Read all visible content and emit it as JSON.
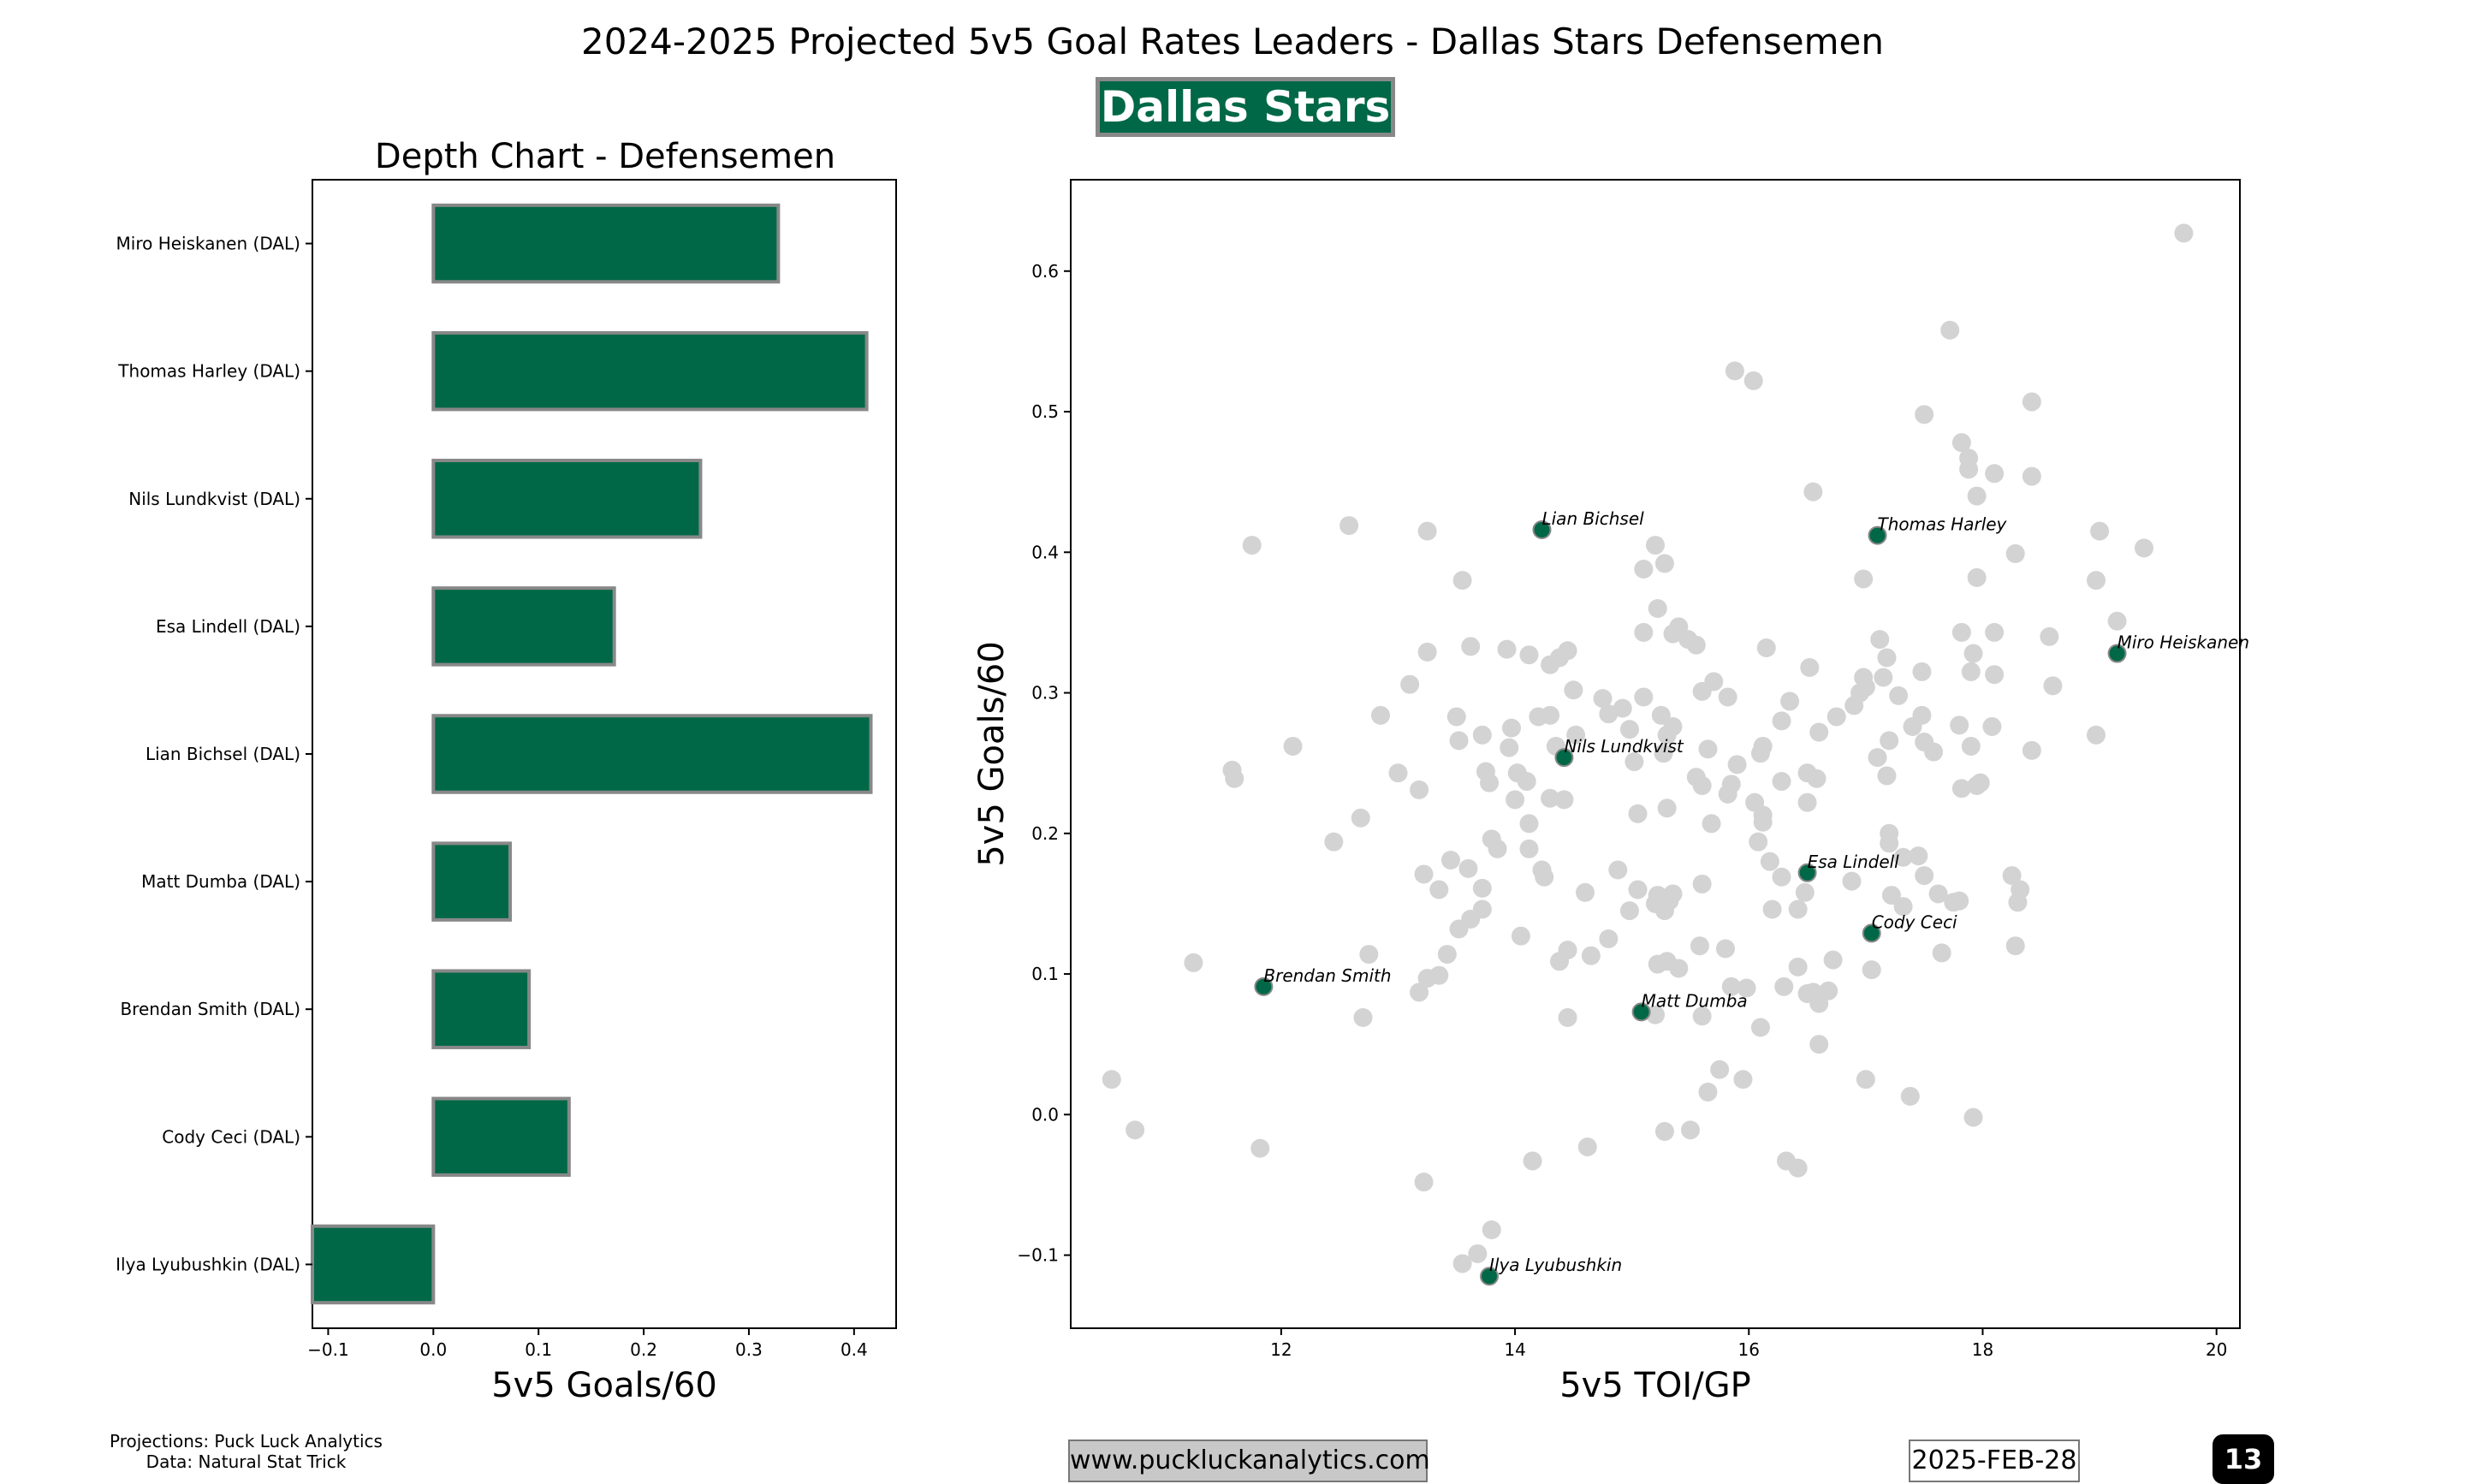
{
  "header": {
    "title": "2024-2025 Projected 5v5 Goal Rates Leaders - Dallas Stars Defensemen",
    "team_badge": "Dallas Stars"
  },
  "footer": {
    "credits_line1": "Projections: Puck Luck Analytics",
    "credits_line2": "Data: Natural Stat Trick",
    "url": "www.puckluckanalytics.com",
    "date": "2025-FEB-28",
    "page_number": "13"
  },
  "colors": {
    "team_green": "#006847",
    "bar_edge": "#888888",
    "league_points": "#d3d3d3"
  },
  "chart_data": [
    {
      "type": "bar",
      "orientation": "horizontal",
      "title": "Depth Chart - Defensemen",
      "xlabel": "5v5 Goals/60",
      "ylabel": "",
      "xlim": [
        -0.115,
        0.44
      ],
      "xticks": [
        -0.1,
        0.0,
        0.1,
        0.2,
        0.3,
        0.4
      ],
      "categories": [
        "Miro Heiskanen (DAL)",
        "Thomas Harley (DAL)",
        "Nils Lundkvist (DAL)",
        "Esa Lindell (DAL)",
        "Lian Bichsel (DAL)",
        "Matt Dumba (DAL)",
        "Brendan Smith (DAL)",
        "Cody Ceci (DAL)",
        "Ilya Lyubushkin (DAL)"
      ],
      "values": [
        0.328,
        0.412,
        0.254,
        0.172,
        0.416,
        0.073,
        0.091,
        0.129,
        -0.115
      ]
    },
    {
      "type": "scatter",
      "title": "",
      "xlabel": "5v5 TOI/GP",
      "ylabel": "5v5 Goals/60",
      "xlim": [
        10.2,
        20.2
      ],
      "ylim": [
        -0.152,
        0.665
      ],
      "xticks": [
        12,
        14,
        16,
        18,
        20
      ],
      "yticks": [
        -0.1,
        0.0,
        0.1,
        0.2,
        0.3,
        0.4,
        0.5,
        0.6
      ],
      "highlight": [
        {
          "label": "Miro Heiskanen",
          "x": 19.15,
          "y": 0.328
        },
        {
          "label": "Thomas Harley",
          "x": 17.1,
          "y": 0.412
        },
        {
          "label": "Lian Bichsel",
          "x": 14.23,
          "y": 0.416
        },
        {
          "label": "Nils Lundkvist",
          "x": 14.42,
          "y": 0.254
        },
        {
          "label": "Esa Lindell",
          "x": 16.5,
          "y": 0.172
        },
        {
          "label": "Cody Ceci",
          "x": 17.05,
          "y": 0.129
        },
        {
          "label": "Matt Dumba",
          "x": 15.08,
          "y": 0.073
        },
        {
          "label": "Brendan Smith",
          "x": 11.85,
          "y": 0.091
        },
        {
          "label": "Ilya Lyubushkin",
          "x": 13.78,
          "y": -0.115
        }
      ],
      "league": [
        [
          19.72,
          0.627
        ],
        [
          17.72,
          0.558
        ],
        [
          15.88,
          0.529
        ],
        [
          16.04,
          0.522
        ],
        [
          18.42,
          0.507
        ],
        [
          17.5,
          0.498
        ],
        [
          17.82,
          0.478
        ],
        [
          17.88,
          0.467
        ],
        [
          17.88,
          0.459
        ],
        [
          18.1,
          0.456
        ],
        [
          18.42,
          0.454
        ],
        [
          17.95,
          0.44
        ],
        [
          16.55,
          0.443
        ],
        [
          11.75,
          0.405
        ],
        [
          12.58,
          0.419
        ],
        [
          13.25,
          0.415
        ],
        [
          15.2,
          0.405
        ],
        [
          19.0,
          0.415
        ],
        [
          19.38,
          0.403
        ],
        [
          18.28,
          0.399
        ],
        [
          15.28,
          0.392
        ],
        [
          15.1,
          0.388
        ],
        [
          13.55,
          0.38
        ],
        [
          16.98,
          0.381
        ],
        [
          17.95,
          0.382
        ],
        [
          18.97,
          0.38
        ],
        [
          15.22,
          0.36
        ],
        [
          19.15,
          0.351
        ],
        [
          15.4,
          0.347
        ],
        [
          15.1,
          0.343
        ],
        [
          15.35,
          0.342
        ],
        [
          15.48,
          0.338
        ],
        [
          15.55,
          0.334
        ],
        [
          17.82,
          0.343
        ],
        [
          18.1,
          0.343
        ],
        [
          18.57,
          0.34
        ],
        [
          17.12,
          0.338
        ],
        [
          13.25,
          0.329
        ],
        [
          13.62,
          0.333
        ],
        [
          13.93,
          0.331
        ],
        [
          14.12,
          0.327
        ],
        [
          14.45,
          0.33
        ],
        [
          14.38,
          0.325
        ],
        [
          14.3,
          0.32
        ],
        [
          16.15,
          0.332
        ],
        [
          16.52,
          0.318
        ],
        [
          17.18,
          0.325
        ],
        [
          17.48,
          0.315
        ],
        [
          17.9,
          0.315
        ],
        [
          17.92,
          0.328
        ],
        [
          18.1,
          0.313
        ],
        [
          17.15,
          0.311
        ],
        [
          16.98,
          0.311
        ],
        [
          18.6,
          0.305
        ],
        [
          13.1,
          0.306
        ],
        [
          14.5,
          0.302
        ],
        [
          15.7,
          0.308
        ],
        [
          15.6,
          0.301
        ],
        [
          15.82,
          0.297
        ],
        [
          16.35,
          0.294
        ],
        [
          17.0,
          0.304
        ],
        [
          17.28,
          0.298
        ],
        [
          17.48,
          0.284
        ],
        [
          17.4,
          0.276
        ],
        [
          16.75,
          0.283
        ],
        [
          16.9,
          0.291
        ],
        [
          16.95,
          0.3
        ],
        [
          14.75,
          0.296
        ],
        [
          14.92,
          0.289
        ],
        [
          15.1,
          0.297
        ],
        [
          15.25,
          0.284
        ],
        [
          15.35,
          0.276
        ],
        [
          14.8,
          0.285
        ],
        [
          14.2,
          0.283
        ],
        [
          14.3,
          0.284
        ],
        [
          13.97,
          0.275
        ],
        [
          13.72,
          0.27
        ],
        [
          13.5,
          0.283
        ],
        [
          12.85,
          0.284
        ],
        [
          12.1,
          0.262
        ],
        [
          11.58,
          0.245
        ],
        [
          11.6,
          0.239
        ],
        [
          13.52,
          0.266
        ],
        [
          13.95,
          0.261
        ],
        [
          14.35,
          0.262
        ],
        [
          14.52,
          0.27
        ],
        [
          14.98,
          0.274
        ],
        [
          15.3,
          0.27
        ],
        [
          15.27,
          0.257
        ],
        [
          15.65,
          0.26
        ],
        [
          16.1,
          0.257
        ],
        [
          16.12,
          0.262
        ],
        [
          16.28,
          0.28
        ],
        [
          16.6,
          0.272
        ],
        [
          17.1,
          0.254
        ],
        [
          17.2,
          0.266
        ],
        [
          17.5,
          0.265
        ],
        [
          17.58,
          0.258
        ],
        [
          17.8,
          0.277
        ],
        [
          17.9,
          0.262
        ],
        [
          18.08,
          0.276
        ],
        [
          18.42,
          0.259
        ],
        [
          18.97,
          0.27
        ],
        [
          17.18,
          0.241
        ],
        [
          17.82,
          0.232
        ],
        [
          17.95,
          0.234
        ],
        [
          17.98,
          0.236
        ],
        [
          16.5,
          0.243
        ],
        [
          16.58,
          0.239
        ],
        [
          16.28,
          0.237
        ],
        [
          16.5,
          0.222
        ],
        [
          15.55,
          0.24
        ],
        [
          15.6,
          0.234
        ],
        [
          15.85,
          0.235
        ],
        [
          15.9,
          0.249
        ],
        [
          14.02,
          0.243
        ],
        [
          14.1,
          0.237
        ],
        [
          13.75,
          0.244
        ],
        [
          13.78,
          0.236
        ],
        [
          13.0,
          0.243
        ],
        [
          13.18,
          0.231
        ],
        [
          14.0,
          0.224
        ],
        [
          14.3,
          0.225
        ],
        [
          14.42,
          0.224
        ],
        [
          15.02,
          0.251
        ],
        [
          15.05,
          0.214
        ],
        [
          15.3,
          0.218
        ],
        [
          15.82,
          0.228
        ],
        [
          16.05,
          0.222
        ],
        [
          16.12,
          0.213
        ],
        [
          16.12,
          0.208
        ],
        [
          15.68,
          0.207
        ],
        [
          14.12,
          0.207
        ],
        [
          12.68,
          0.211
        ],
        [
          12.45,
          0.194
        ],
        [
          13.8,
          0.196
        ],
        [
          14.12,
          0.189
        ],
        [
          13.85,
          0.189
        ],
        [
          14.23,
          0.174
        ],
        [
          14.25,
          0.169
        ],
        [
          13.6,
          0.175
        ],
        [
          13.45,
          0.181
        ],
        [
          13.72,
          0.161
        ],
        [
          13.35,
          0.16
        ],
        [
          13.22,
          0.171
        ],
        [
          14.88,
          0.174
        ],
        [
          14.6,
          0.158
        ],
        [
          15.05,
          0.16
        ],
        [
          15.22,
          0.156
        ],
        [
          15.2,
          0.15
        ],
        [
          15.28,
          0.145
        ],
        [
          15.35,
          0.157
        ],
        [
          15.32,
          0.152
        ],
        [
          15.6,
          0.164
        ],
        [
          16.08,
          0.194
        ],
        [
          16.18,
          0.18
        ],
        [
          16.28,
          0.169
        ],
        [
          16.2,
          0.146
        ],
        [
          16.42,
          0.146
        ],
        [
          16.48,
          0.158
        ],
        [
          16.88,
          0.166
        ],
        [
          17.2,
          0.2
        ],
        [
          17.2,
          0.193
        ],
        [
          17.32,
          0.183
        ],
        [
          17.45,
          0.184
        ],
        [
          17.5,
          0.17
        ],
        [
          17.22,
          0.156
        ],
        [
          17.32,
          0.148
        ],
        [
          17.62,
          0.157
        ],
        [
          17.75,
          0.151
        ],
        [
          17.8,
          0.152
        ],
        [
          17.65,
          0.115
        ],
        [
          18.25,
          0.17
        ],
        [
          18.32,
          0.16
        ],
        [
          18.3,
          0.151
        ],
        [
          18.28,
          0.12
        ],
        [
          13.72,
          0.146
        ],
        [
          13.52,
          0.132
        ],
        [
          13.62,
          0.139
        ],
        [
          13.42,
          0.114
        ],
        [
          14.05,
          0.127
        ],
        [
          14.38,
          0.109
        ],
        [
          14.45,
          0.117
        ],
        [
          14.65,
          0.113
        ],
        [
          14.8,
          0.125
        ],
        [
          14.98,
          0.145
        ],
        [
          15.22,
          0.107
        ],
        [
          15.3,
          0.109
        ],
        [
          15.4,
          0.104
        ],
        [
          15.58,
          0.12
        ],
        [
          15.8,
          0.118
        ],
        [
          15.85,
          0.091
        ],
        [
          15.98,
          0.09
        ],
        [
          16.3,
          0.091
        ],
        [
          16.42,
          0.105
        ],
        [
          16.5,
          0.086
        ],
        [
          16.55,
          0.087
        ],
        [
          16.68,
          0.088
        ],
        [
          16.6,
          0.079
        ],
        [
          16.72,
          0.11
        ],
        [
          17.05,
          0.103
        ],
        [
          12.75,
          0.114
        ],
        [
          11.25,
          0.108
        ],
        [
          13.25,
          0.097
        ],
        [
          13.35,
          0.099
        ],
        [
          13.18,
          0.087
        ],
        [
          12.7,
          0.069
        ],
        [
          14.45,
          0.069
        ],
        [
          15.2,
          0.071
        ],
        [
          15.6,
          0.07
        ],
        [
          16.1,
          0.062
        ],
        [
          16.6,
          0.05
        ],
        [
          15.75,
          0.032
        ],
        [
          15.95,
          0.025
        ],
        [
          15.65,
          0.016
        ],
        [
          17.0,
          0.025
        ],
        [
          17.38,
          0.013
        ],
        [
          10.55,
          0.025
        ],
        [
          10.75,
          -0.011
        ],
        [
          11.82,
          -0.024
        ],
        [
          15.28,
          -0.012
        ],
        [
          15.5,
          -0.011
        ],
        [
          14.62,
          -0.023
        ],
        [
          14.15,
          -0.033
        ],
        [
          16.32,
          -0.033
        ],
        [
          16.42,
          -0.038
        ],
        [
          17.92,
          -0.002
        ],
        [
          13.22,
          -0.048
        ],
        [
          13.8,
          -0.082
        ],
        [
          13.68,
          -0.099
        ],
        [
          13.55,
          -0.106
        ]
      ]
    }
  ]
}
